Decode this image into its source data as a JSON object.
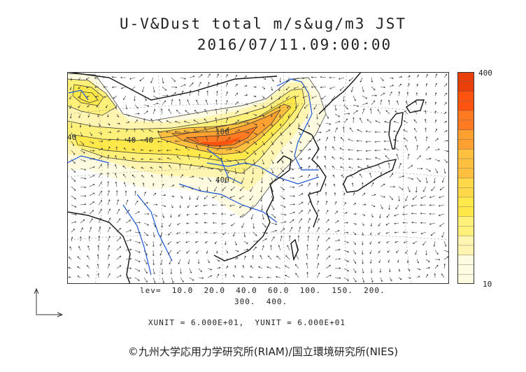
{
  "title": "U-V&Dust total m/s&ug/m3 JST",
  "timestamp": "2016/07/11.09:00:00",
  "colorbar": {
    "max_label": "400",
    "min_label": "10",
    "levels": [
      10,
      20,
      40,
      60,
      100,
      150,
      200,
      300,
      400
    ],
    "colors": [
      "#fffbe0",
      "#fff5b0",
      "#fff07a",
      "#ffe84a",
      "#ffd84a",
      "#ffc040",
      "#ffa030",
      "#ff7a20",
      "#ff5410",
      "#e84008"
    ]
  },
  "levels_line1": "lev=  10.0  20.0  40.0  60.0  100.  150.  200.",
  "levels_line2": "300.  400.",
  "units_line": "XUNIT = 6.000E+01,  YUNIT = 6.000E+01",
  "credit": "©九州大学応用力学研究所(RIAM)/国立環境研究所(NIES)",
  "map_labels": [
    "40",
    "40",
    "100",
    "40",
    "400"
  ],
  "colors": {
    "river": "#1a55d8",
    "coast": "#111111",
    "contour": "#333333"
  }
}
